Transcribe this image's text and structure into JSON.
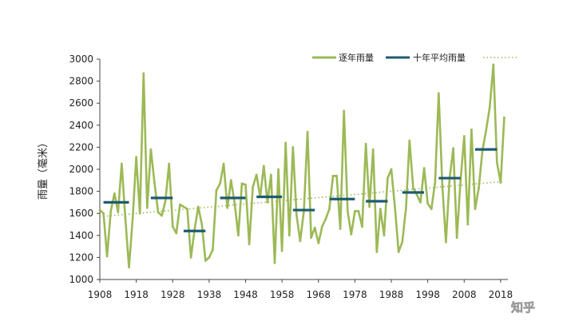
{
  "chart_data": {
    "type": "line",
    "ylabel": "雨量（毫米）",
    "ylim": [
      1000,
      3000
    ],
    "yticks": [
      1000,
      1200,
      1400,
      1600,
      1800,
      2000,
      2200,
      2400,
      2600,
      2800,
      3000
    ],
    "xlim": [
      1908,
      2020
    ],
    "xticks": [
      1908,
      1918,
      1928,
      1938,
      1948,
      1958,
      1968,
      1978,
      1988,
      1998,
      2008,
      2018
    ],
    "grid": false,
    "legend_position": "top-right",
    "series": [
      {
        "name": "逐年雨量",
        "kind": "annual",
        "color": "#9cb956",
        "x": [
          1908,
          1909,
          1910,
          1911,
          1912,
          1913,
          1914,
          1915,
          1916,
          1917,
          1918,
          1919,
          1920,
          1921,
          1922,
          1923,
          1924,
          1925,
          1926,
          1927,
          1928,
          1929,
          1930,
          1931,
          1932,
          1933,
          1934,
          1935,
          1936,
          1937,
          1938,
          1939,
          1940,
          1941,
          1942,
          1943,
          1944,
          1945,
          1946,
          1947,
          1948,
          1949,
          1950,
          1951,
          1952,
          1953,
          1954,
          1955,
          1956,
          1957,
          1958,
          1959,
          1960,
          1961,
          1962,
          1963,
          1964,
          1965,
          1966,
          1967,
          1968,
          1969,
          1970,
          1971,
          1972,
          1973,
          1974,
          1975,
          1976,
          1977,
          1978,
          1979,
          1980,
          1981,
          1982,
          1983,
          1984,
          1985,
          1986,
          1987,
          1988,
          1989,
          1990,
          1991,
          1992,
          1993,
          1994,
          1995,
          1996,
          1997,
          1998,
          1999,
          2000,
          2001,
          2002,
          2003,
          2004,
          2005,
          2006,
          2007,
          2008,
          2009,
          2010,
          2011,
          2012,
          2013,
          2014,
          2015,
          2016,
          2017,
          2018,
          2019
        ],
        "values": [
          1630,
          1600,
          1210,
          1620,
          1780,
          1610,
          2050,
          1560,
          1110,
          1550,
          2110,
          1600,
          2870,
          1650,
          2180,
          1880,
          1610,
          1580,
          1710,
          2050,
          1480,
          1420,
          1680,
          1660,
          1640,
          1200,
          1450,
          1660,
          1500,
          1170,
          1200,
          1270,
          1810,
          1870,
          2050,
          1650,
          1900,
          1690,
          1400,
          1870,
          1860,
          1320,
          1840,
          1950,
          1750,
          2030,
          1700,
          1950,
          1150,
          2000,
          1260,
          2240,
          1400,
          2200,
          1580,
          1350,
          1620,
          2340,
          1380,
          1470,
          1330,
          1480,
          1550,
          1640,
          1940,
          1940,
          1460,
          2530,
          1620,
          1410,
          1620,
          1620,
          1480,
          2230,
          1660,
          2180,
          1250,
          1640,
          1400,
          1920,
          2000,
          1650,
          1250,
          1340,
          1640,
          2260,
          1830,
          1770,
          1700,
          2010,
          1690,
          1640,
          1880,
          2690,
          1850,
          1340,
          1920,
          2190,
          1380,
          1900,
          2300,
          1500,
          2360,
          1640,
          1830,
          2170,
          2350,
          2560,
          2950,
          2060,
          1880,
          2470
        ]
      },
      {
        "name": "十年平均雨量",
        "kind": "decadal",
        "color": "#1f5b70",
        "segments": [
          {
            "x": [
              1909,
              1916
            ],
            "value": 1700
          },
          {
            "x": [
              1922,
              1928
            ],
            "value": 1740
          },
          {
            "x": [
              1931,
              1937
            ],
            "value": 1440
          },
          {
            "x": [
              1941,
              1948
            ],
            "value": 1740
          },
          {
            "x": [
              1951,
              1958
            ],
            "value": 1750
          },
          {
            "x": [
              1961,
              1967
            ],
            "value": 1630
          },
          {
            "x": [
              1971,
              1978
            ],
            "value": 1730
          },
          {
            "x": [
              1981,
              1987
            ],
            "value": 1710
          },
          {
            "x": [
              1991,
              1997
            ],
            "value": 1790
          },
          {
            "x": [
              2001,
              2007
            ],
            "value": 1920
          },
          {
            "x": [
              2011,
              2017
            ],
            "value": 2180
          }
        ]
      },
      {
        "name": "",
        "kind": "trend",
        "color": "#9cb956",
        "x": [
          1908,
          2019
        ],
        "values": [
          1570,
          1890
        ]
      }
    ]
  },
  "watermark": "知乎"
}
